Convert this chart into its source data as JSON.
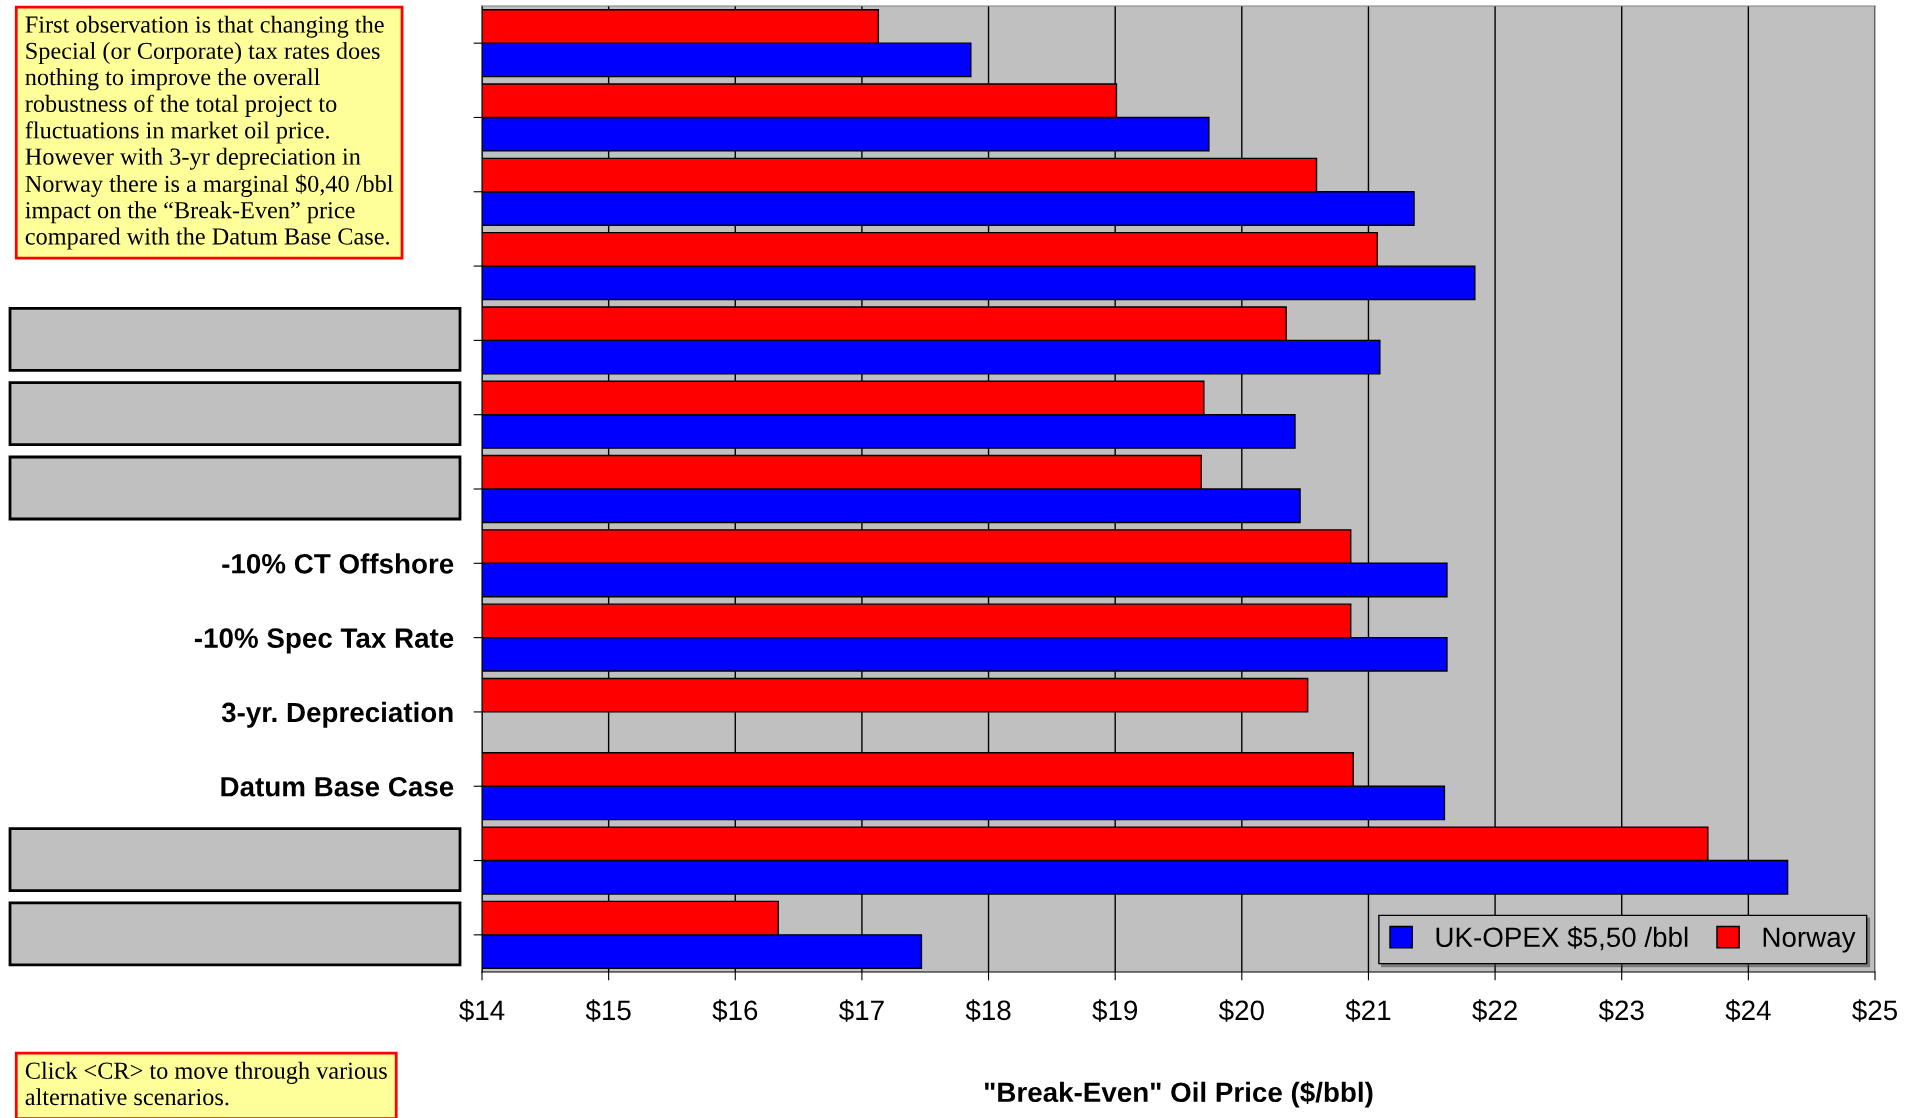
{
  "chart_data": {
    "type": "bar",
    "orientation": "horizontal",
    "xlabel": "\"Break-Even\" Oil Price ($/bbl)",
    "categories": [
      null,
      null,
      null,
      null,
      null,
      null,
      null,
      "-10% CT Offshore",
      "-10% Spec Tax Rate",
      "3-yr. Depreciation",
      "Datum Base Case",
      null,
      null
    ],
    "series": [
      {
        "name": "UK-OPEX $5,50 /bbl",
        "color": "#0000ff",
        "values": [
          17.86,
          19.74,
          21.36,
          21.84,
          21.09,
          20.42,
          20.46,
          21.62,
          21.62,
          null,
          21.6,
          24.31,
          17.47
        ]
      },
      {
        "name": "Norway",
        "color": "#ff0000",
        "values": [
          17.13,
          19.01,
          20.59,
          21.07,
          20.35,
          19.7,
          19.68,
          20.86,
          20.86,
          20.52,
          20.88,
          23.68,
          16.34
        ]
      }
    ],
    "xlim": [
      14,
      25
    ],
    "xticks": [
      {
        "value": 14,
        "label": "$14"
      },
      {
        "value": 15,
        "label": "$15"
      },
      {
        "value": 16,
        "label": "$16"
      },
      {
        "value": 17,
        "label": "$17"
      },
      {
        "value": 18,
        "label": "$18"
      },
      {
        "value": 19,
        "label": "$19"
      },
      {
        "value": 20,
        "label": "$20"
      },
      {
        "value": 21,
        "label": "$21"
      },
      {
        "value": 22,
        "label": "$22"
      },
      {
        "value": 23,
        "label": "$23"
      },
      {
        "value": 24,
        "label": "$24"
      },
      {
        "value": 25,
        "label": "$25"
      }
    ],
    "grid": "x",
    "legend": "bottom right",
    "annotations": [
      "First observation is that changing the\nSpecial (or Corporate) tax rates does\nnothing to improve the overall\nrobustness of the total project to\nfluctuations in market oil price.\nHowever with 3-yr depreciation in\nNorway there is a marginal $0,40 /bbl\nimpact on the “Break-Even” price\ncompared with the Datum Base Case.",
      "Click <CR> to move through various\nalternative scenarios."
    ]
  }
}
